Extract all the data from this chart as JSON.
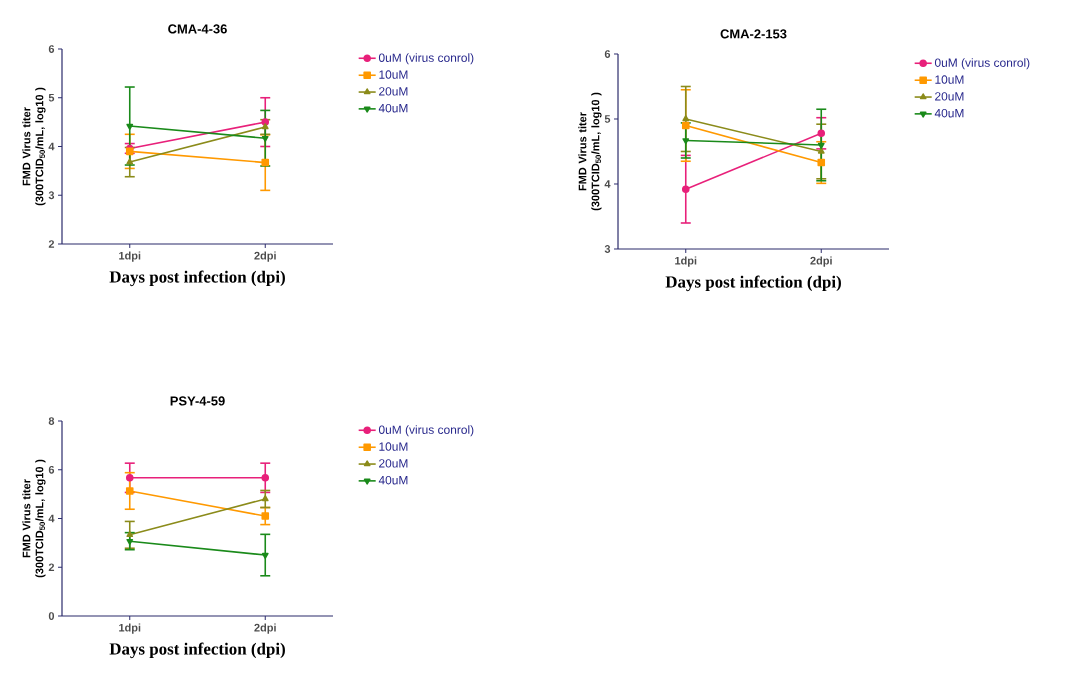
{
  "chart_data": [
    {
      "type": "line",
      "title": "CMA-4-36",
      "xlabel": "Days post infection (dpi)",
      "ylabel": "FMD Virus titer (300TCID$_{50}$/mL, log10 )",
      "categories": [
        "1dpi",
        "2dpi"
      ],
      "ylim": [
        2,
        6
      ],
      "yticks": [
        2,
        3,
        4,
        5,
        6
      ],
      "legend": "right",
      "series": [
        {
          "name": "0uM (virus conrol)",
          "color": "#e8207a",
          "marker": "circle",
          "values": [
            3.96,
            4.5
          ],
          "errors": [
            0.1,
            0.5
          ]
        },
        {
          "name": "10uM",
          "color": "#ff9900",
          "marker": "square",
          "values": [
            3.9,
            3.67
          ],
          "errors": [
            0.35,
            0.57
          ]
        },
        {
          "name": "20uM",
          "color": "#8b8b1a",
          "marker": "triangle",
          "values": [
            3.68,
            4.4
          ],
          "errors": [
            0.3,
            0.15
          ]
        },
        {
          "name": "40uM",
          "color": "#1a8a1a",
          "marker": "triangle down",
          "values": [
            4.42,
            4.17
          ],
          "errors": [
            0.8,
            0.57
          ]
        }
      ]
    },
    {
      "type": "line",
      "title": "CMA-2-153",
      "xlabel": "Days post infection (dpi)",
      "ylabel": "FMD Virus titer (300TCID$_{50}$/mL, log10 )",
      "categories": [
        "1dpi",
        "2dpi"
      ],
      "ylim": [
        3,
        6
      ],
      "yticks": [
        3,
        4,
        5,
        6
      ],
      "legend": "right",
      "series": [
        {
          "name": "0uM (virus conrol)",
          "color": "#e8207a",
          "marker": "circle",
          "values": [
            3.92,
            4.78
          ],
          "errors": [
            0.52,
            0.24
          ]
        },
        {
          "name": "10uM",
          "color": "#ff9900",
          "marker": "square",
          "values": [
            4.9,
            4.33
          ],
          "errors": [
            0.55,
            0.32
          ]
        },
        {
          "name": "20uM",
          "color": "#8b8b1a",
          "marker": "triangle",
          "values": [
            5.0,
            4.5
          ],
          "errors": [
            0.5,
            0.42
          ]
        },
        {
          "name": "40uM",
          "color": "#1a8a1a",
          "marker": "triangle down",
          "values": [
            4.67,
            4.6
          ],
          "errors": [
            0.27,
            0.55
          ]
        }
      ]
    },
    {
      "type": "line",
      "title": "PSY-4-59",
      "xlabel": "Days post infection (dpi)",
      "ylabel": "FMD Virus titer (300TCID$_{50}$/mL, log10 )",
      "categories": [
        "1dpi",
        "2dpi"
      ],
      "ylim": [
        0,
        8
      ],
      "yticks": [
        0,
        2,
        4,
        6,
        8
      ],
      "legend": "right",
      "series": [
        {
          "name": "0uM (virus conrol)",
          "color": "#e8207a",
          "marker": "circle",
          "values": [
            5.67,
            5.67
          ],
          "errors": [
            0.6,
            0.6
          ]
        },
        {
          "name": "10uM",
          "color": "#ff9900",
          "marker": "square",
          "values": [
            5.13,
            4.1
          ],
          "errors": [
            0.75,
            0.35
          ]
        },
        {
          "name": "20uM",
          "color": "#8b8b1a",
          "marker": "triangle",
          "values": [
            3.33,
            4.8
          ],
          "errors": [
            0.55,
            0.35
          ]
        },
        {
          "name": "40uM",
          "color": "#1a8a1a",
          "marker": "triangle down",
          "values": [
            3.07,
            2.5
          ],
          "errors": [
            0.35,
            0.85
          ]
        }
      ]
    }
  ]
}
